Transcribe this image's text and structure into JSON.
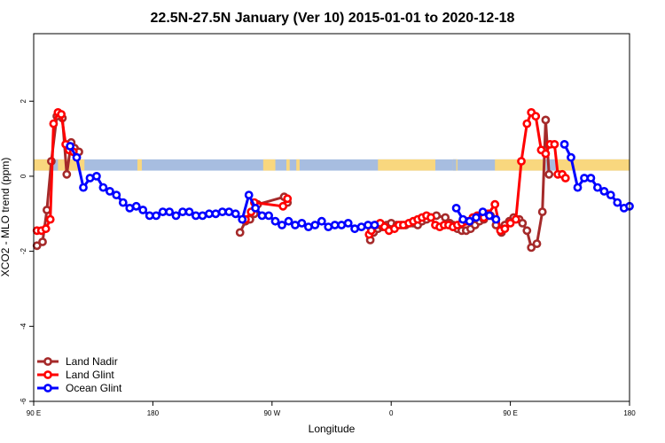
{
  "chart_data": {
    "type": "line",
    "title": "22.5N-27.5N January (Ver 10)   2015-01-01 to 2020-12-18",
    "xlabel": "Longitude",
    "ylabel": "XCO2 - MLO trend (ppm)",
    "xlim": [
      -90,
      180
    ],
    "ylim": [
      -6,
      3.8
    ],
    "x_ticks": [
      {
        "value": -90,
        "label": "90 E"
      },
      {
        "value": -36,
        "label": "180"
      },
      {
        "value": 18,
        "label": "90 W"
      },
      {
        "value": 72,
        "label": "0"
      },
      {
        "value": 126,
        "label": "90 E"
      },
      {
        "value": 180,
        "label": "180"
      }
    ],
    "y_ticks": [
      2,
      0,
      -2,
      -4,
      -6
    ],
    "grid": false,
    "legend_position": "bottom-left",
    "background_band": {
      "y_range": [
        0.15,
        0.45
      ],
      "ocean_color": "#a7bde0",
      "land_color": "#f9d77e"
    },
    "series": [
      {
        "name": "Land Nadir",
        "color": "#a52a2a",
        "x": [
          -88.5,
          -86,
          -84,
          -82,
          -79.5,
          -77,
          -75,
          -73,
          -71.5,
          -69.5,
          3.5,
          6,
          8,
          10,
          11.5,
          23.5,
          25,
          62.5,
          64,
          66,
          68,
          70,
          72,
          74.5,
          76.5,
          78.5,
          80.5,
          82,
          84,
          86,
          88,
          90,
          92.5,
          96.5,
          98.5,
          100,
          102,
          104,
          106,
          108,
          110,
          112,
          114,
          117,
          119.5,
          122,
          123.5,
          125.5,
          127.5,
          130,
          131.5,
          133.5,
          135.5,
          138,
          140.5,
          142,
          143.5
        ],
        "y": [
          -1.85,
          -1.75,
          -0.9,
          0.4,
          1.6,
          1.55,
          0.05,
          0.9,
          0.75,
          0.65,
          -1.5,
          -1.2,
          -1.15,
          -1.0,
          -0.75,
          -0.55,
          -0.7,
          -1.7,
          -1.5,
          -1.4,
          -1.35,
          -1.3,
          -1.25,
          -1.3,
          -1.3,
          -1.3,
          -1.25,
          -1.25,
          -1.3,
          -1.2,
          -1.15,
          -1.1,
          -1.05,
          -1.1,
          -1.25,
          -1.3,
          -1.4,
          -1.45,
          -1.45,
          -1.4,
          -1.3,
          -1.2,
          -1.15,
          -1.05,
          -1.3,
          -1.5,
          -1.3,
          -1.2,
          -1.1,
          -1.15,
          -1.25,
          -1.45,
          -1.9,
          -1.8,
          -0.95,
          1.5,
          0.05
        ]
      },
      {
        "name": "Land Glint",
        "color": "#ff0000",
        "x": [
          -88.5,
          -86.5,
          -84.5,
          -82.5,
          -81,
          -79,
          -77.5,
          -75.5,
          -74,
          -72,
          6,
          8.5,
          10,
          23,
          25,
          62,
          63,
          65,
          67,
          69,
          71,
          73.5,
          75.5,
          77.5,
          80,
          82,
          84,
          86,
          88,
          90,
          92,
          94,
          96,
          98,
          100,
          102,
          104,
          106,
          109,
          111,
          114,
          116,
          119,
          121.5,
          123.5,
          126,
          128.5,
          131,
          133.5,
          135.5,
          137.5,
          140,
          142,
          144,
          146,
          147.5,
          149.5,
          151
        ],
        "y": [
          -1.45,
          -1.45,
          -1.4,
          -1.15,
          1.4,
          1.7,
          1.65,
          0.85,
          0.7,
          0.65,
          -1.15,
          -0.95,
          -0.7,
          -0.8,
          -0.6,
          -1.55,
          -1.45,
          -1.3,
          -1.25,
          -1.35,
          -1.45,
          -1.4,
          -1.3,
          -1.3,
          -1.25,
          -1.2,
          -1.15,
          -1.1,
          -1.05,
          -1.1,
          -1.3,
          -1.35,
          -1.3,
          -1.3,
          -1.35,
          -1.3,
          -1.25,
          -1.2,
          -1.1,
          -1.05,
          -1.1,
          -1.0,
          -0.75,
          -1.45,
          -1.4,
          -1.25,
          -1.15,
          0.4,
          1.4,
          1.7,
          1.6,
          0.7,
          0.6,
          0.85,
          0.85,
          0.05,
          0.05,
          -0.05
        ]
      },
      {
        "name": "Ocean Glint",
        "color": "#0000ff",
        "x": [
          -73.5,
          -70.5,
          -67.5,
          -64.5,
          -61.5,
          -58.5,
          -55.5,
          -52.5,
          -49.5,
          -46.5,
          -43.5,
          -40.5,
          -37.5,
          -34.5,
          -31.5,
          -28.5,
          -25.5,
          -22.5,
          -19.5,
          -16.5,
          -13.5,
          -10.5,
          -7.5,
          -4.5,
          -1.5,
          1.5,
          4.5,
          7.5,
          10.5,
          13.5,
          16.5,
          19.5,
          22.5,
          25.5,
          28.5,
          31.5,
          34.5,
          37.5,
          40.5,
          43.5,
          46.5,
          49.5,
          52.5,
          55.5,
          58.5,
          61.5,
          64.5,
          101.5,
          104.5,
          107.5,
          110.5,
          113.5,
          116.5,
          119.5,
          150.5,
          153.5,
          156.5,
          159.5,
          162.5,
          165.5,
          168.5,
          171.5,
          174.5,
          177.5,
          180
        ],
        "y": [
          0.8,
          0.5,
          -0.3,
          -0.05,
          0.0,
          -0.3,
          -0.4,
          -0.5,
          -0.7,
          -0.85,
          -0.8,
          -0.9,
          -1.05,
          -1.05,
          -0.95,
          -0.95,
          -1.05,
          -0.95,
          -0.95,
          -1.05,
          -1.05,
          -1.0,
          -1.0,
          -0.95,
          -0.95,
          -1.0,
          -1.15,
          -0.5,
          -0.85,
          -1.05,
          -1.05,
          -1.2,
          -1.3,
          -1.2,
          -1.3,
          -1.25,
          -1.35,
          -1.3,
          -1.2,
          -1.35,
          -1.3,
          -1.3,
          -1.25,
          -1.4,
          -1.35,
          -1.3,
          -1.3,
          -0.85,
          -1.15,
          -1.2,
          -1.1,
          -0.95,
          -1.05,
          -1.15,
          0.85,
          0.5,
          -0.3,
          -0.05,
          -0.05,
          -0.3,
          -0.4,
          -0.5,
          -0.7,
          -0.85,
          -0.8
        ]
      }
    ]
  }
}
